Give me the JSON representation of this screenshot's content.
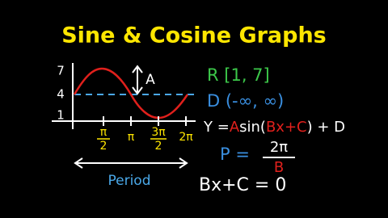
{
  "title": "Sine & Cosine Graphs",
  "graph": {
    "y_labels": [
      "7",
      "4",
      "1"
    ],
    "amplitude_label": "A",
    "x_labels": [
      {
        "numerator": "π",
        "denominator": "2"
      },
      {
        "text": "π"
      },
      {
        "numerator": "3π",
        "denominator": "2"
      },
      {
        "text": "2π"
      }
    ],
    "period_label": "Period"
  },
  "notes": {
    "range": "R [1, 7]",
    "domain": "D (-∞, ∞)",
    "equation": [
      "Y =",
      "A",
      "sin(",
      "Bx+C",
      ") + D"
    ],
    "period": {
      "lhs": "P =",
      "numerator": "2π",
      "denominator": "B"
    },
    "phase": "Bx+C = 0"
  }
}
